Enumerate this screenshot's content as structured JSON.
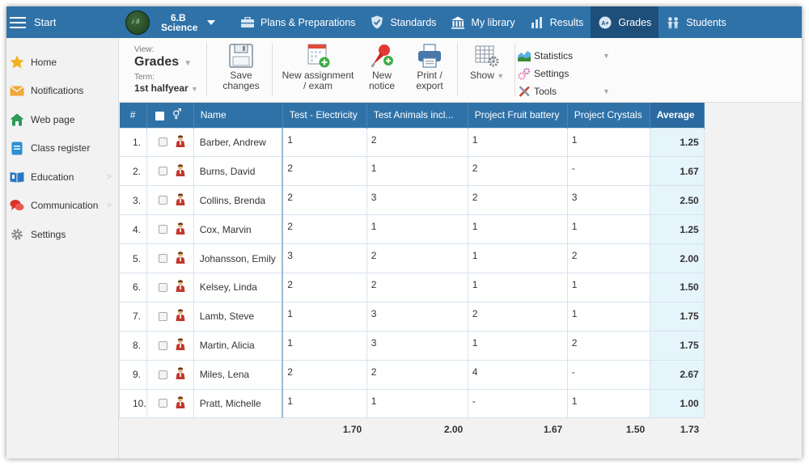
{
  "topbar": {
    "start_label": "Start",
    "class_line1": "6.B",
    "class_line2": "Science",
    "nav": [
      {
        "label": "Plans & Preparations",
        "icon": "briefcase-icon"
      },
      {
        "label": "Standards",
        "icon": "shield-check-icon"
      },
      {
        "label": "My library",
        "icon": "library-icon"
      },
      {
        "label": "Results",
        "icon": "bar-chart-icon"
      },
      {
        "label": "Grades",
        "icon": "grades-badge-icon",
        "active": true
      },
      {
        "label": "Students",
        "icon": "students-icon"
      }
    ]
  },
  "sidebar": {
    "items": [
      {
        "label": "Home",
        "icon": "star-icon"
      },
      {
        "label": "Notifications",
        "icon": "envelope-icon"
      },
      {
        "label": "Web page",
        "icon": "house-icon"
      },
      {
        "label": "Class register",
        "icon": "register-icon"
      },
      {
        "label": "Education",
        "icon": "book-icon",
        "chevron": ">"
      },
      {
        "label": "Communication",
        "icon": "chat-icon",
        "chevron": ">"
      },
      {
        "label": "Settings",
        "icon": "gear-icon"
      }
    ]
  },
  "toolbar": {
    "view_label": "View:",
    "view_value": "Grades",
    "term_label": "Term:",
    "term_value": "1st halfyear",
    "save_line1": "Save",
    "save_line2": "changes",
    "new_assignment_line1": "New assignment",
    "new_assignment_line2": "/ exam",
    "new_notice_line1": "New",
    "new_notice_line2": "notice",
    "print_line1": "Print /",
    "print_line2": "export",
    "show_label": "Show",
    "statistics_label": "Statistics",
    "settings_label": "Settings",
    "tools_label": "Tools"
  },
  "table": {
    "headers": {
      "num": "#",
      "name": "Name",
      "col1": "Test - Electricity",
      "col2": "Test Animals incl...",
      "col3": "Project Fruit battery",
      "col4": "Project Crystals",
      "avg": "Average"
    },
    "rows": [
      {
        "num": "1.",
        "name": "Barber, Andrew",
        "g1": "1",
        "g2": "2",
        "g3": "1",
        "g4": "1",
        "avg": "1.25"
      },
      {
        "num": "2.",
        "name": "Burns, David",
        "g1": "2",
        "g2": "1",
        "g3": "2",
        "g4": "-",
        "avg": "1.67"
      },
      {
        "num": "3.",
        "name": "Collins, Brenda",
        "g1": "2",
        "g2": "3",
        "g3": "2",
        "g4": "3",
        "avg": "2.50"
      },
      {
        "num": "4.",
        "name": "Cox, Marvin",
        "g1": "2",
        "g2": "1",
        "g3": "1",
        "g4": "1",
        "avg": "1.25"
      },
      {
        "num": "5.",
        "name": "Johansson, Emily",
        "g1": "3",
        "g2": "2",
        "g3": "1",
        "g4": "2",
        "avg": "2.00"
      },
      {
        "num": "6.",
        "name": "Kelsey, Linda",
        "g1": "2",
        "g2": "2",
        "g3": "1",
        "g4": "1",
        "avg": "1.50"
      },
      {
        "num": "7.",
        "name": "Lamb, Steve",
        "g1": "1",
        "g2": "3",
        "g3": "2",
        "g4": "1",
        "avg": "1.75"
      },
      {
        "num": "8.",
        "name": "Martin, Alicia",
        "g1": "1",
        "g2": "3",
        "g3": "1",
        "g4": "2",
        "avg": "1.75"
      },
      {
        "num": "9.",
        "name": "Miles, Lena",
        "g1": "2",
        "g2": "2",
        "g3": "4",
        "g4": "-",
        "avg": "2.67"
      },
      {
        "num": "10.",
        "name": "Pratt, Michelle",
        "g1": "1",
        "g2": "1",
        "g3": "-",
        "g4": "1",
        "avg": "1.00"
      }
    ],
    "footer": {
      "c1": "1.70",
      "c2": "2.00",
      "c3": "1.67",
      "c4": "1.50",
      "avg": "1.73"
    }
  },
  "colors": {
    "topbar": "#2f72a8",
    "active_tab": "#1e4e7a",
    "average_cell": "#e6f4fc"
  }
}
